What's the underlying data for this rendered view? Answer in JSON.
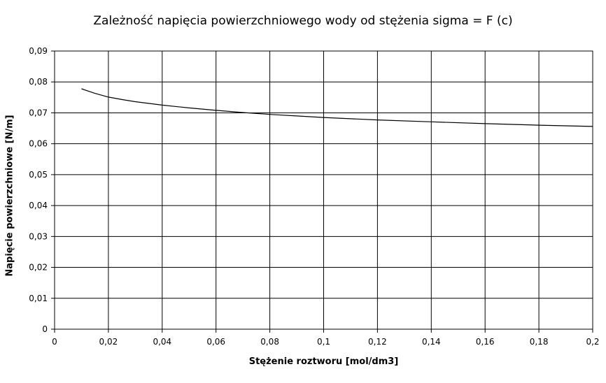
{
  "chart_data": {
    "type": "line",
    "title": "Zależność napięcia powierzchniowego wody od stężenia sigma = F (c)",
    "xlabel": "Stężenie roztworu [mol/dm3]",
    "ylabel": "Napięcie powierzchniowe [N/m]",
    "xlim": [
      0,
      0.2
    ],
    "ylim": [
      0,
      0.09
    ],
    "x_ticks": [
      "0",
      "0,02",
      "0,04",
      "0,06",
      "0,08",
      "0,1",
      "0,12",
      "0,14",
      "0,16",
      "0,18",
      "0,2"
    ],
    "y_ticks": [
      "0",
      "0,01",
      "0,02",
      "0,03",
      "0,04",
      "0,05",
      "0,06",
      "0,07",
      "0,08",
      "0,09"
    ],
    "grid": true,
    "legend": "none",
    "series": [
      {
        "x": [
          0.01,
          0.015,
          0.02,
          0.025,
          0.03,
          0.04,
          0.05,
          0.06,
          0.07,
          0.08,
          0.09,
          0.1,
          0.12,
          0.14,
          0.16,
          0.18,
          0.2
        ],
        "y": [
          0.0778,
          0.0763,
          0.0751,
          0.0743,
          0.0736,
          0.0725,
          0.0716,
          0.0708,
          0.0701,
          0.0695,
          0.069,
          0.0685,
          0.0677,
          0.0671,
          0.0665,
          0.066,
          0.0656
        ],
        "color": "#000000"
      }
    ]
  }
}
